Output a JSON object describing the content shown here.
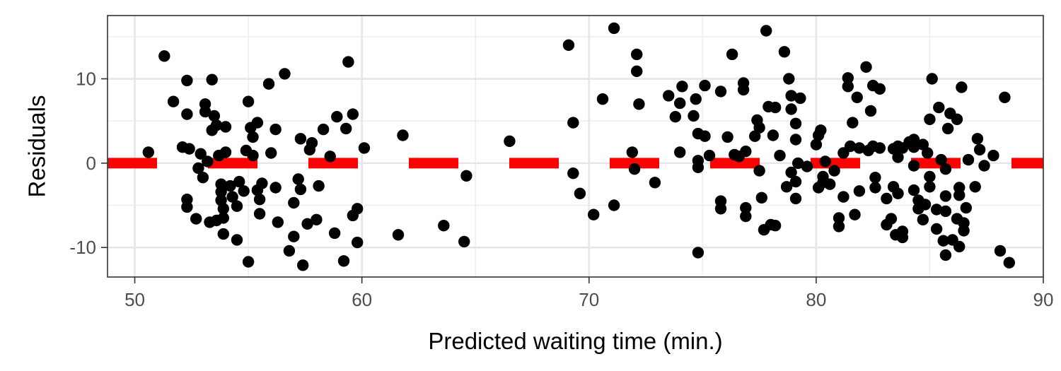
{
  "chart_data": {
    "type": "scatter",
    "xlabel": "Predicted waiting time (min.)",
    "ylabel": "Residuals",
    "xlim": [
      48.8,
      90
    ],
    "ylim": [
      -13.5,
      17.5
    ],
    "x_ticks": [
      50,
      60,
      70,
      80,
      90
    ],
    "x_tick_labels": [
      "50",
      "60",
      "70",
      "80",
      "90"
    ],
    "y_ticks": [
      -10,
      0,
      10
    ],
    "y_tick_labels": [
      "-10",
      "0",
      "10"
    ],
    "x_minor_ticks": [
      55,
      65,
      75,
      85
    ],
    "y_minor_ticks": [
      -5,
      5,
      15
    ],
    "grid": true,
    "reference_line": {
      "y": 0,
      "style": "dashed",
      "color": "#ff0000"
    },
    "series": [
      {
        "name": "residuals",
        "color": "#000000",
        "points": [
          [
            50.6,
            1.3
          ],
          [
            51.3,
            12.7
          ],
          [
            51.7,
            7.3
          ],
          [
            52.1,
            1.9
          ],
          [
            52.3,
            9.8
          ],
          [
            52.3,
            5.8
          ],
          [
            52.3,
            -4.3
          ],
          [
            52.3,
            -5.2
          ],
          [
            52.4,
            1.7
          ],
          [
            52.7,
            -6.6
          ],
          [
            52.8,
            -0.6
          ],
          [
            52.9,
            1.1
          ],
          [
            53.0,
            -1.7
          ],
          [
            53.1,
            7.0
          ],
          [
            53.1,
            6.1
          ],
          [
            53.2,
            0.2
          ],
          [
            53.3,
            -7.0
          ],
          [
            53.4,
            9.9
          ],
          [
            53.4,
            3.9
          ],
          [
            53.5,
            5.6
          ],
          [
            53.6,
            4.5
          ],
          [
            53.6,
            -6.8
          ],
          [
            53.7,
            0.9
          ],
          [
            53.8,
            -2.5
          ],
          [
            53.8,
            -3.4
          ],
          [
            53.8,
            -4.4
          ],
          [
            53.9,
            -5.4
          ],
          [
            53.9,
            -6.5
          ],
          [
            53.9,
            -8.4
          ],
          [
            54.0,
            1.3
          ],
          [
            54.0,
            4.3
          ],
          [
            54.2,
            -2.7
          ],
          [
            54.3,
            -4.0
          ],
          [
            54.5,
            -5.1
          ],
          [
            54.5,
            -9.1
          ],
          [
            54.6,
            -2.2
          ],
          [
            54.8,
            -3.3
          ],
          [
            54.9,
            1.5
          ],
          [
            55.0,
            7.3
          ],
          [
            55.0,
            -11.7
          ],
          [
            55.1,
            4.2
          ],
          [
            55.2,
            3.1
          ],
          [
            55.2,
            0.9
          ],
          [
            55.4,
            4.8
          ],
          [
            55.4,
            -3.2
          ],
          [
            55.5,
            -4.3
          ],
          [
            55.5,
            -6.0
          ],
          [
            55.6,
            -2.4
          ],
          [
            55.9,
            9.4
          ],
          [
            56.0,
            1.2
          ],
          [
            56.2,
            4.0
          ],
          [
            56.2,
            -2.9
          ],
          [
            56.3,
            -7.0
          ],
          [
            56.6,
            10.6
          ],
          [
            56.8,
            -10.4
          ],
          [
            57.0,
            -8.7
          ],
          [
            57.0,
            -4.7
          ],
          [
            57.2,
            -1.9
          ],
          [
            57.3,
            2.9
          ],
          [
            57.3,
            -3.1
          ],
          [
            57.4,
            -12.1
          ],
          [
            57.6,
            -7.2
          ],
          [
            57.7,
            1.6
          ],
          [
            57.8,
            2.4
          ],
          [
            58.0,
            -6.7
          ],
          [
            58.1,
            -2.7
          ],
          [
            58.3,
            4.0
          ],
          [
            58.6,
            0.8
          ],
          [
            58.8,
            -8.3
          ],
          [
            58.9,
            5.5
          ],
          [
            59.2,
            -11.6
          ],
          [
            59.3,
            4.1
          ],
          [
            59.4,
            12.0
          ],
          [
            59.6,
            5.8
          ],
          [
            59.6,
            -6.2
          ],
          [
            59.8,
            -5.4
          ],
          [
            59.8,
            -9.4
          ],
          [
            60.1,
            1.8
          ],
          [
            61.6,
            -8.5
          ],
          [
            61.8,
            3.3
          ],
          [
            63.6,
            -7.4
          ],
          [
            64.5,
            -9.3
          ],
          [
            64.6,
            -1.5
          ],
          [
            66.5,
            2.6
          ],
          [
            69.1,
            14.0
          ],
          [
            69.3,
            4.8
          ],
          [
            69.3,
            -1.2
          ],
          [
            69.6,
            -3.6
          ],
          [
            70.2,
            -6.1
          ],
          [
            70.6,
            7.6
          ],
          [
            71.1,
            16.0
          ],
          [
            71.1,
            -5.0
          ],
          [
            71.9,
            1.3
          ],
          [
            72.0,
            -0.7
          ],
          [
            72.1,
            12.9
          ],
          [
            72.1,
            10.9
          ],
          [
            72.2,
            7.0
          ],
          [
            72.9,
            -2.3
          ],
          [
            73.5,
            8.0
          ],
          [
            73.8,
            5.5
          ],
          [
            74.0,
            1.3
          ],
          [
            74.0,
            7.1
          ],
          [
            74.1,
            9.1
          ],
          [
            74.6,
            5.6
          ],
          [
            74.7,
            7.6
          ],
          [
            74.8,
            3.5
          ],
          [
            74.8,
            0.3
          ],
          [
            74.8,
            -0.5
          ],
          [
            74.8,
            -10.6
          ],
          [
            75.1,
            9.2
          ],
          [
            75.1,
            3.2
          ],
          [
            75.3,
            0.9
          ],
          [
            75.8,
            8.5
          ],
          [
            75.8,
            -4.5
          ],
          [
            75.8,
            -5.4
          ],
          [
            76.1,
            3.1
          ],
          [
            76.3,
            12.9
          ],
          [
            76.4,
            1.0
          ],
          [
            76.6,
            0.8
          ],
          [
            76.8,
            9.5
          ],
          [
            76.8,
            8.7
          ],
          [
            76.9,
            1.4
          ],
          [
            76.9,
            -5.3
          ],
          [
            76.9,
            -6.3
          ],
          [
            77.3,
            3.2
          ],
          [
            77.4,
            5.1
          ],
          [
            77.5,
            4.2
          ],
          [
            77.5,
            -0.9
          ],
          [
            77.6,
            -4.1
          ],
          [
            77.7,
            -7.9
          ],
          [
            77.8,
            15.7
          ],
          [
            77.9,
            6.7
          ],
          [
            78.0,
            -7.3
          ],
          [
            78.1,
            3.3
          ],
          [
            78.2,
            6.6
          ],
          [
            78.2,
            -7.4
          ],
          [
            78.4,
            0.9
          ],
          [
            78.6,
            13.2
          ],
          [
            78.7,
            -2.8
          ],
          [
            78.8,
            10.0
          ],
          [
            78.9,
            8.0
          ],
          [
            78.9,
            6.4
          ],
          [
            78.9,
            -1.1
          ],
          [
            79.1,
            4.7
          ],
          [
            79.1,
            2.8
          ],
          [
            79.1,
            -2.2
          ],
          [
            79.1,
            -4.2
          ],
          [
            79.2,
            0.0
          ],
          [
            79.3,
            7.7
          ],
          [
            79.6,
            -0.4
          ],
          [
            80.0,
            2.2
          ],
          [
            80.1,
            3.3
          ],
          [
            80.1,
            -2.9
          ],
          [
            80.2,
            3.9
          ],
          [
            80.3,
            -2.3
          ],
          [
            80.3,
            -1.6
          ],
          [
            80.4,
            0.2
          ],
          [
            80.6,
            -2.5
          ],
          [
            80.8,
            -0.9
          ],
          [
            81.0,
            -6.5
          ],
          [
            81.0,
            -7.5
          ],
          [
            81.2,
            1.2
          ],
          [
            81.2,
            -4.0
          ],
          [
            81.4,
            10.1
          ],
          [
            81.4,
            9.1
          ],
          [
            81.5,
            2.0
          ],
          [
            81.6,
            4.8
          ],
          [
            81.7,
            -6.1
          ],
          [
            81.8,
            7.8
          ],
          [
            81.9,
            1.8
          ],
          [
            81.9,
            -3.3
          ],
          [
            82.2,
            11.4
          ],
          [
            82.3,
            1.5
          ],
          [
            82.4,
            6.2
          ],
          [
            82.5,
            9.2
          ],
          [
            82.5,
            2.0
          ],
          [
            82.6,
            -1.7
          ],
          [
            82.6,
            -2.9
          ],
          [
            82.8,
            8.8
          ],
          [
            82.8,
            1.8
          ],
          [
            83.1,
            -4.2
          ],
          [
            83.1,
            -7.3
          ],
          [
            83.3,
            -6.6
          ],
          [
            83.4,
            1.7
          ],
          [
            83.4,
            -2.8
          ],
          [
            83.5,
            -8.5
          ],
          [
            83.6,
            2.0
          ],
          [
            83.6,
            0.7
          ],
          [
            83.6,
            -3.6
          ],
          [
            83.8,
            1.8
          ],
          [
            83.8,
            -8.8
          ],
          [
            83.8,
            -8.1
          ],
          [
            84.1,
            2.5
          ],
          [
            84.3,
            2.8
          ],
          [
            84.3,
            1.9
          ],
          [
            84.3,
            -0.3
          ],
          [
            84.3,
            -3.2
          ],
          [
            84.5,
            -4.4
          ],
          [
            84.5,
            -5.4
          ],
          [
            84.7,
            2.2
          ],
          [
            84.7,
            -6.7
          ],
          [
            84.8,
            -4.9
          ],
          [
            84.9,
            1.2
          ],
          [
            85.0,
            5.2
          ],
          [
            85.0,
            -1.6
          ],
          [
            85.0,
            -2.8
          ],
          [
            85.1,
            10.0
          ],
          [
            85.3,
            -5.5
          ],
          [
            85.3,
            -7.8
          ],
          [
            85.4,
            6.6
          ],
          [
            85.5,
            0.4
          ],
          [
            85.6,
            -9.2
          ],
          [
            85.7,
            -0.7
          ],
          [
            85.7,
            -3.9
          ],
          [
            85.7,
            -5.7
          ],
          [
            85.7,
            -10.9
          ],
          [
            85.8,
            4.1
          ],
          [
            85.9,
            5.9
          ],
          [
            86.0,
            -9.1
          ],
          [
            86.2,
            5.2
          ],
          [
            86.2,
            -6.6
          ],
          [
            86.3,
            -2.9
          ],
          [
            86.3,
            -3.8
          ],
          [
            86.3,
            -9.9
          ],
          [
            86.4,
            9.0
          ],
          [
            86.5,
            -8.0
          ],
          [
            86.5,
            -7.1
          ],
          [
            86.6,
            -5.3
          ],
          [
            86.7,
            0.4
          ],
          [
            87.0,
            -2.8
          ],
          [
            87.1,
            2.9
          ],
          [
            87.2,
            1.6
          ],
          [
            87.4,
            -0.3
          ],
          [
            87.8,
            0.9
          ],
          [
            88.1,
            -10.4
          ],
          [
            88.5,
            -11.8
          ],
          [
            88.3,
            7.8
          ]
        ]
      }
    ]
  }
}
